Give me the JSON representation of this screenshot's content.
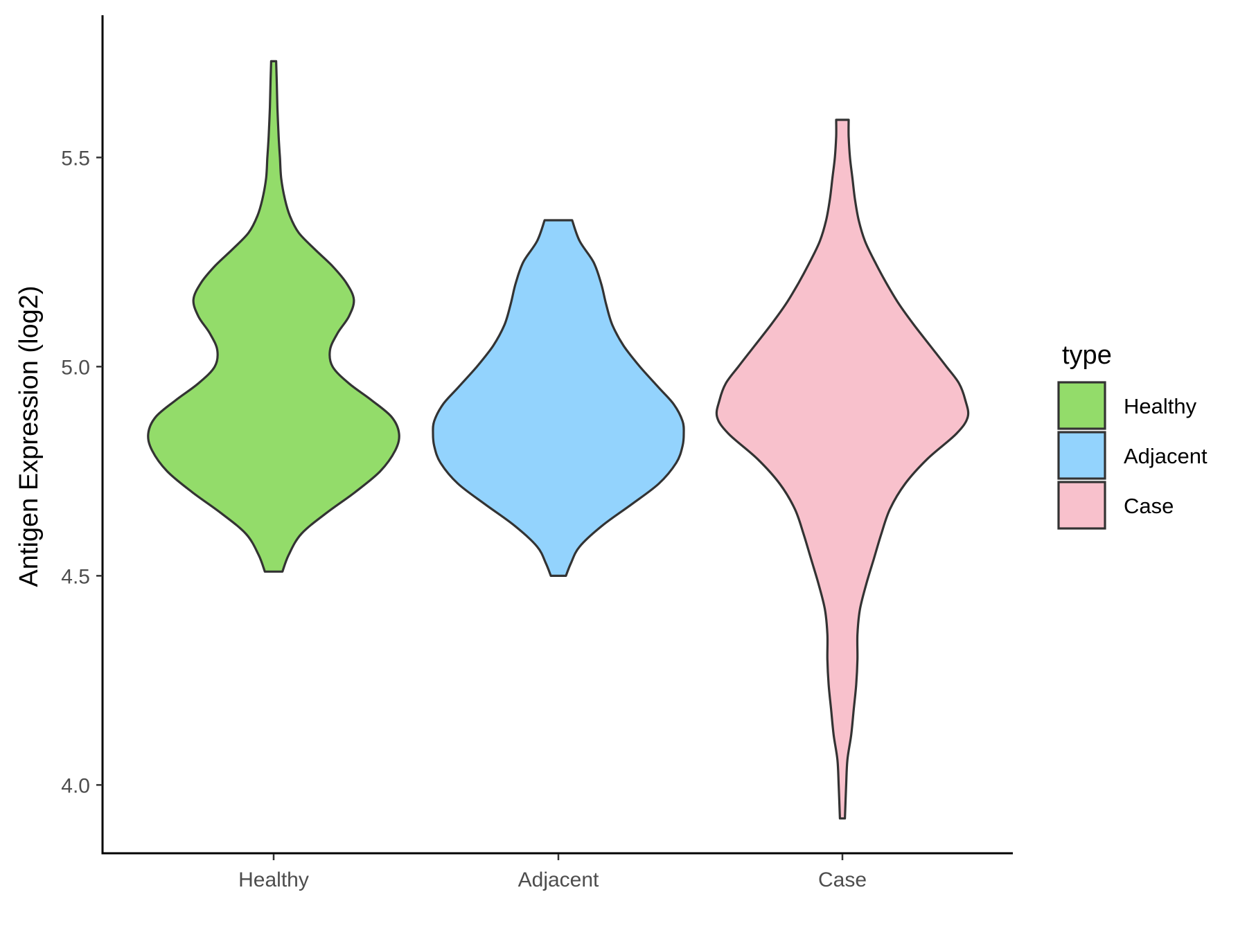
{
  "chart_data": {
    "type": "violin",
    "title": "",
    "xlabel": "",
    "ylabel": "Antigen Expression (log2)",
    "ylim": [
      3.84,
      5.84
    ],
    "yticks": [
      {
        "value": 4.0,
        "label": "4.0"
      },
      {
        "value": 4.5,
        "label": "4.5"
      },
      {
        "value": 5.0,
        "label": "5.0"
      },
      {
        "value": 5.5,
        "label": "5.5"
      }
    ],
    "categories": [
      "Healthy",
      "Adjacent",
      "Case"
    ],
    "grid": false,
    "legend": {
      "title": "type",
      "position": "right",
      "items": [
        {
          "label": "Healthy",
          "color": "#93dc6a"
        },
        {
          "label": "Adjacent",
          "color": "#93d3fd"
        },
        {
          "label": "Case",
          "color": "#f8c1cc"
        }
      ]
    },
    "series": [
      {
        "name": "Healthy",
        "color": "#93dc6a",
        "min": 4.51,
        "max": 5.73,
        "density": [
          [
            4.51,
            0.07
          ],
          [
            4.55,
            0.12
          ],
          [
            4.6,
            0.22
          ],
          [
            4.65,
            0.42
          ],
          [
            4.7,
            0.65
          ],
          [
            4.75,
            0.85
          ],
          [
            4.8,
            0.97
          ],
          [
            4.84,
            1.0
          ],
          [
            4.88,
            0.94
          ],
          [
            4.92,
            0.78
          ],
          [
            4.96,
            0.6
          ],
          [
            5.0,
            0.47
          ],
          [
            5.04,
            0.45
          ],
          [
            5.08,
            0.51
          ],
          [
            5.12,
            0.6
          ],
          [
            5.16,
            0.64
          ],
          [
            5.2,
            0.58
          ],
          [
            5.24,
            0.47
          ],
          [
            5.28,
            0.33
          ],
          [
            5.32,
            0.2
          ],
          [
            5.36,
            0.13
          ],
          [
            5.4,
            0.09
          ],
          [
            5.45,
            0.06
          ],
          [
            5.5,
            0.05
          ],
          [
            5.55,
            0.04
          ],
          [
            5.62,
            0.03
          ],
          [
            5.68,
            0.025
          ],
          [
            5.73,
            0.02
          ]
        ]
      },
      {
        "name": "Adjacent",
        "color": "#93d3fd",
        "min": 4.5,
        "max": 5.35,
        "density": [
          [
            4.5,
            0.06
          ],
          [
            4.53,
            0.1
          ],
          [
            4.57,
            0.17
          ],
          [
            4.62,
            0.35
          ],
          [
            4.67,
            0.58
          ],
          [
            4.72,
            0.8
          ],
          [
            4.77,
            0.94
          ],
          [
            4.81,
            0.99
          ],
          [
            4.84,
            1.0
          ],
          [
            4.87,
            0.99
          ],
          [
            4.91,
            0.92
          ],
          [
            4.95,
            0.8
          ],
          [
            5.0,
            0.65
          ],
          [
            5.05,
            0.52
          ],
          [
            5.1,
            0.43
          ],
          [
            5.15,
            0.38
          ],
          [
            5.2,
            0.34
          ],
          [
            5.25,
            0.28
          ],
          [
            5.3,
            0.17
          ],
          [
            5.35,
            0.11
          ]
        ]
      },
      {
        "name": "Case",
        "color": "#f8c1cc",
        "min": 3.92,
        "max": 5.59,
        "density": [
          [
            3.92,
            0.02
          ],
          [
            4.0,
            0.03
          ],
          [
            4.06,
            0.04
          ],
          [
            4.12,
            0.07
          ],
          [
            4.18,
            0.09
          ],
          [
            4.24,
            0.11
          ],
          [
            4.3,
            0.12
          ],
          [
            4.36,
            0.12
          ],
          [
            4.42,
            0.14
          ],
          [
            4.48,
            0.19
          ],
          [
            4.54,
            0.25
          ],
          [
            4.6,
            0.31
          ],
          [
            4.66,
            0.38
          ],
          [
            4.72,
            0.5
          ],
          [
            4.78,
            0.68
          ],
          [
            4.84,
            0.91
          ],
          [
            4.88,
            1.0
          ],
          [
            4.92,
            0.98
          ],
          [
            4.96,
            0.93
          ],
          [
            5.0,
            0.83
          ],
          [
            5.05,
            0.7
          ],
          [
            5.1,
            0.57
          ],
          [
            5.15,
            0.45
          ],
          [
            5.2,
            0.35
          ],
          [
            5.25,
            0.26
          ],
          [
            5.3,
            0.18
          ],
          [
            5.35,
            0.13
          ],
          [
            5.4,
            0.1
          ],
          [
            5.45,
            0.08
          ],
          [
            5.5,
            0.06
          ],
          [
            5.55,
            0.05
          ],
          [
            5.59,
            0.05
          ]
        ]
      }
    ]
  }
}
